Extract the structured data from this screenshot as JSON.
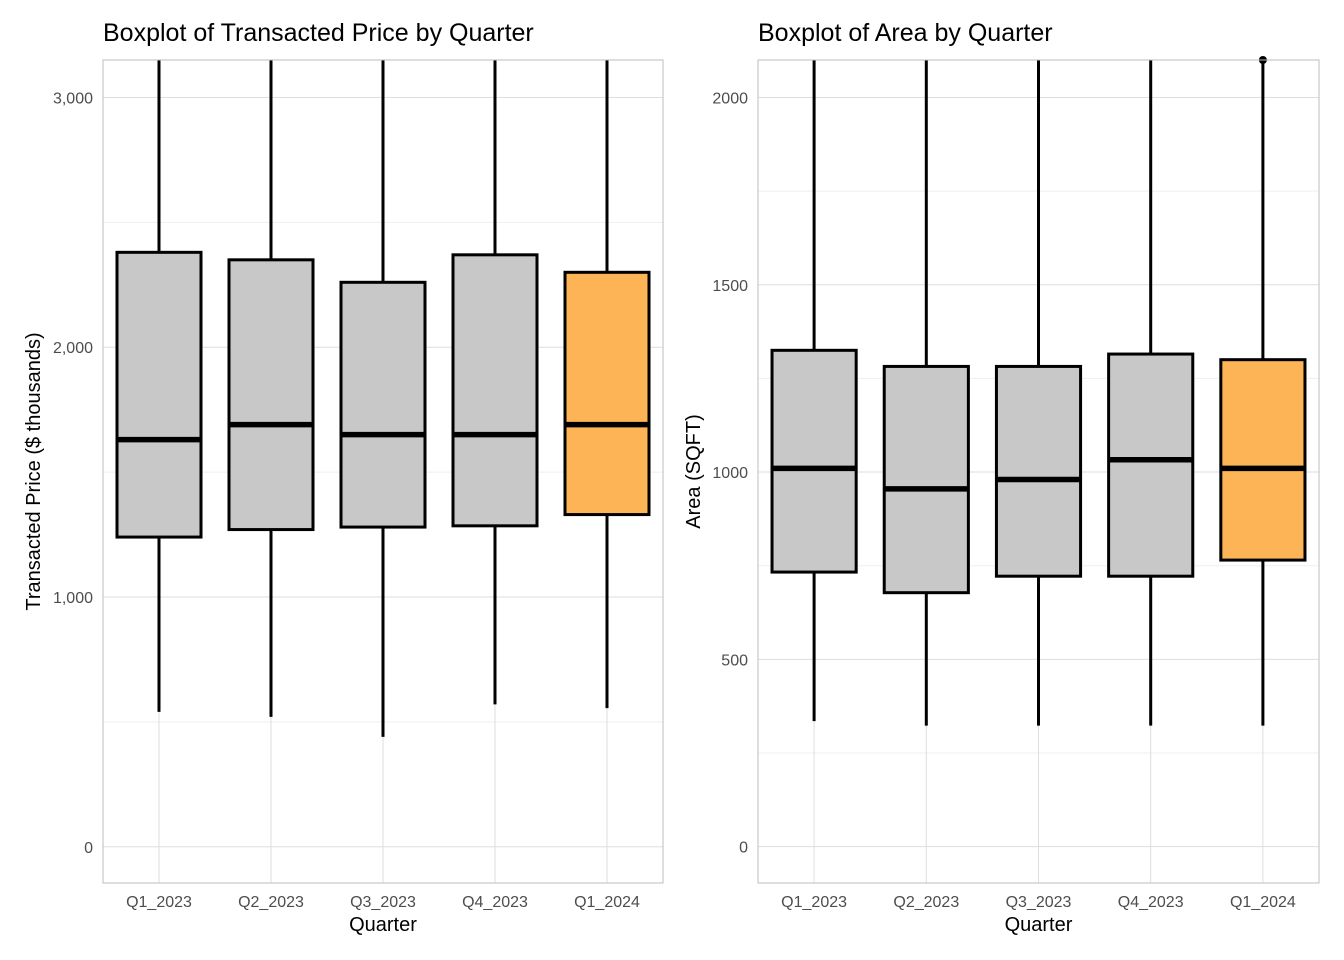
{
  "colors": {
    "box_fill": "#c8c8c8",
    "highlight_fill": "#fdb456",
    "grid_major": "#dedede",
    "grid_minor": "#efefef",
    "panel_border": "#bdbdbd",
    "stroke": "#000000"
  },
  "chart_data": [
    {
      "type": "boxplot",
      "title": "Boxplot of Transacted Price by Quarter",
      "xlabel": "Quarter",
      "ylabel": "Transacted Price ($ thousands)",
      "categories": [
        "Q1_2023",
        "Q2_2023",
        "Q3_2023",
        "Q4_2023",
        "Q1_2024"
      ],
      "highlight": "Q1_2024",
      "ylim": [
        -145,
        3150
      ],
      "yticks": [
        0,
        1000,
        2000,
        3000
      ],
      "ytick_labels": [
        "0",
        "1,000",
        "2,000",
        "3,000"
      ],
      "grid": true,
      "boxes": [
        {
          "category": "Q1_2023",
          "whisker_low": 540,
          "q1": 1240,
          "median": 1630,
          "q3": 2380,
          "whisker_high": 3150
        },
        {
          "category": "Q2_2023",
          "whisker_low": 520,
          "q1": 1270,
          "median": 1690,
          "q3": 2350,
          "whisker_high": 3150
        },
        {
          "category": "Q3_2023",
          "whisker_low": 440,
          "q1": 1280,
          "median": 1650,
          "q3": 2260,
          "whisker_high": 3150
        },
        {
          "category": "Q4_2023",
          "whisker_low": 570,
          "q1": 1285,
          "median": 1650,
          "q3": 2370,
          "whisker_high": 3150
        },
        {
          "category": "Q1_2024",
          "whisker_low": 555,
          "q1": 1330,
          "median": 1690,
          "q3": 2300,
          "whisker_high": 3150
        }
      ]
    },
    {
      "type": "boxplot",
      "title": "Boxplot of Area by Quarter",
      "xlabel": "Quarter",
      "ylabel": "Area (SQFT)",
      "categories": [
        "Q1_2023",
        "Q2_2023",
        "Q3_2023",
        "Q4_2023",
        "Q1_2024"
      ],
      "highlight": "Q1_2024",
      "ylim": [
        -97,
        2100
      ],
      "yticks": [
        0,
        500,
        1000,
        1500,
        2000
      ],
      "ytick_labels": [
        "0",
        "500",
        "1000",
        "1500",
        "2000"
      ],
      "grid": true,
      "boxes": [
        {
          "category": "Q1_2023",
          "whisker_low": 335,
          "q1": 733,
          "median": 1010,
          "q3": 1325,
          "whisker_high": 2100
        },
        {
          "category": "Q2_2023",
          "whisker_low": 323,
          "q1": 678,
          "median": 955,
          "q3": 1282,
          "whisker_high": 2100
        },
        {
          "category": "Q3_2023",
          "whisker_low": 323,
          "q1": 722,
          "median": 980,
          "q3": 1282,
          "whisker_high": 2100
        },
        {
          "category": "Q4_2023",
          "whisker_low": 323,
          "q1": 722,
          "median": 1033,
          "q3": 1315,
          "whisker_high": 2100
        },
        {
          "category": "Q1_2024",
          "whisker_low": 323,
          "q1": 765,
          "median": 1010,
          "q3": 1300,
          "whisker_high": 2100,
          "outliers": [
            2100
          ]
        }
      ]
    }
  ]
}
